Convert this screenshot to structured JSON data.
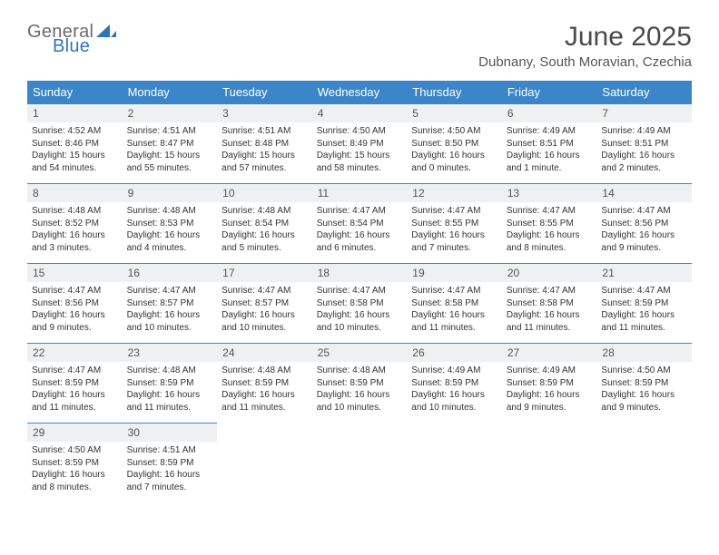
{
  "logo": {
    "general": "General",
    "blue": "Blue"
  },
  "title": "June 2025",
  "location": "Dubnany, South Moravian, Czechia",
  "colors": {
    "header_bg": "#3b86c8",
    "daynum_bg": "#eef0f1",
    "logo_gray": "#6a6a6a",
    "logo_blue": "#2e75b6"
  },
  "weekdays": [
    "Sunday",
    "Monday",
    "Tuesday",
    "Wednesday",
    "Thursday",
    "Friday",
    "Saturday"
  ],
  "days": [
    {
      "n": "1",
      "sr": "4:52 AM",
      "ss": "8:46 PM",
      "dl": "15 hours and 54 minutes."
    },
    {
      "n": "2",
      "sr": "4:51 AM",
      "ss": "8:47 PM",
      "dl": "15 hours and 55 minutes."
    },
    {
      "n": "3",
      "sr": "4:51 AM",
      "ss": "8:48 PM",
      "dl": "15 hours and 57 minutes."
    },
    {
      "n": "4",
      "sr": "4:50 AM",
      "ss": "8:49 PM",
      "dl": "15 hours and 58 minutes."
    },
    {
      "n": "5",
      "sr": "4:50 AM",
      "ss": "8:50 PM",
      "dl": "16 hours and 0 minutes."
    },
    {
      "n": "6",
      "sr": "4:49 AM",
      "ss": "8:51 PM",
      "dl": "16 hours and 1 minute."
    },
    {
      "n": "7",
      "sr": "4:49 AM",
      "ss": "8:51 PM",
      "dl": "16 hours and 2 minutes."
    },
    {
      "n": "8",
      "sr": "4:48 AM",
      "ss": "8:52 PM",
      "dl": "16 hours and 3 minutes."
    },
    {
      "n": "9",
      "sr": "4:48 AM",
      "ss": "8:53 PM",
      "dl": "16 hours and 4 minutes."
    },
    {
      "n": "10",
      "sr": "4:48 AM",
      "ss": "8:54 PM",
      "dl": "16 hours and 5 minutes."
    },
    {
      "n": "11",
      "sr": "4:47 AM",
      "ss": "8:54 PM",
      "dl": "16 hours and 6 minutes."
    },
    {
      "n": "12",
      "sr": "4:47 AM",
      "ss": "8:55 PM",
      "dl": "16 hours and 7 minutes."
    },
    {
      "n": "13",
      "sr": "4:47 AM",
      "ss": "8:55 PM",
      "dl": "16 hours and 8 minutes."
    },
    {
      "n": "14",
      "sr": "4:47 AM",
      "ss": "8:56 PM",
      "dl": "16 hours and 9 minutes."
    },
    {
      "n": "15",
      "sr": "4:47 AM",
      "ss": "8:56 PM",
      "dl": "16 hours and 9 minutes."
    },
    {
      "n": "16",
      "sr": "4:47 AM",
      "ss": "8:57 PM",
      "dl": "16 hours and 10 minutes."
    },
    {
      "n": "17",
      "sr": "4:47 AM",
      "ss": "8:57 PM",
      "dl": "16 hours and 10 minutes."
    },
    {
      "n": "18",
      "sr": "4:47 AM",
      "ss": "8:58 PM",
      "dl": "16 hours and 10 minutes."
    },
    {
      "n": "19",
      "sr": "4:47 AM",
      "ss": "8:58 PM",
      "dl": "16 hours and 11 minutes."
    },
    {
      "n": "20",
      "sr": "4:47 AM",
      "ss": "8:58 PM",
      "dl": "16 hours and 11 minutes."
    },
    {
      "n": "21",
      "sr": "4:47 AM",
      "ss": "8:59 PM",
      "dl": "16 hours and 11 minutes."
    },
    {
      "n": "22",
      "sr": "4:47 AM",
      "ss": "8:59 PM",
      "dl": "16 hours and 11 minutes."
    },
    {
      "n": "23",
      "sr": "4:48 AM",
      "ss": "8:59 PM",
      "dl": "16 hours and 11 minutes."
    },
    {
      "n": "24",
      "sr": "4:48 AM",
      "ss": "8:59 PM",
      "dl": "16 hours and 11 minutes."
    },
    {
      "n": "25",
      "sr": "4:48 AM",
      "ss": "8:59 PM",
      "dl": "16 hours and 10 minutes."
    },
    {
      "n": "26",
      "sr": "4:49 AM",
      "ss": "8:59 PM",
      "dl": "16 hours and 10 minutes."
    },
    {
      "n": "27",
      "sr": "4:49 AM",
      "ss": "8:59 PM",
      "dl": "16 hours and 9 minutes."
    },
    {
      "n": "28",
      "sr": "4:50 AM",
      "ss": "8:59 PM",
      "dl": "16 hours and 9 minutes."
    },
    {
      "n": "29",
      "sr": "4:50 AM",
      "ss": "8:59 PM",
      "dl": "16 hours and 8 minutes."
    },
    {
      "n": "30",
      "sr": "4:51 AM",
      "ss": "8:59 PM",
      "dl": "16 hours and 7 minutes."
    }
  ],
  "labels": {
    "sunrise": "Sunrise:",
    "sunset": "Sunset:",
    "daylight": "Daylight:"
  }
}
